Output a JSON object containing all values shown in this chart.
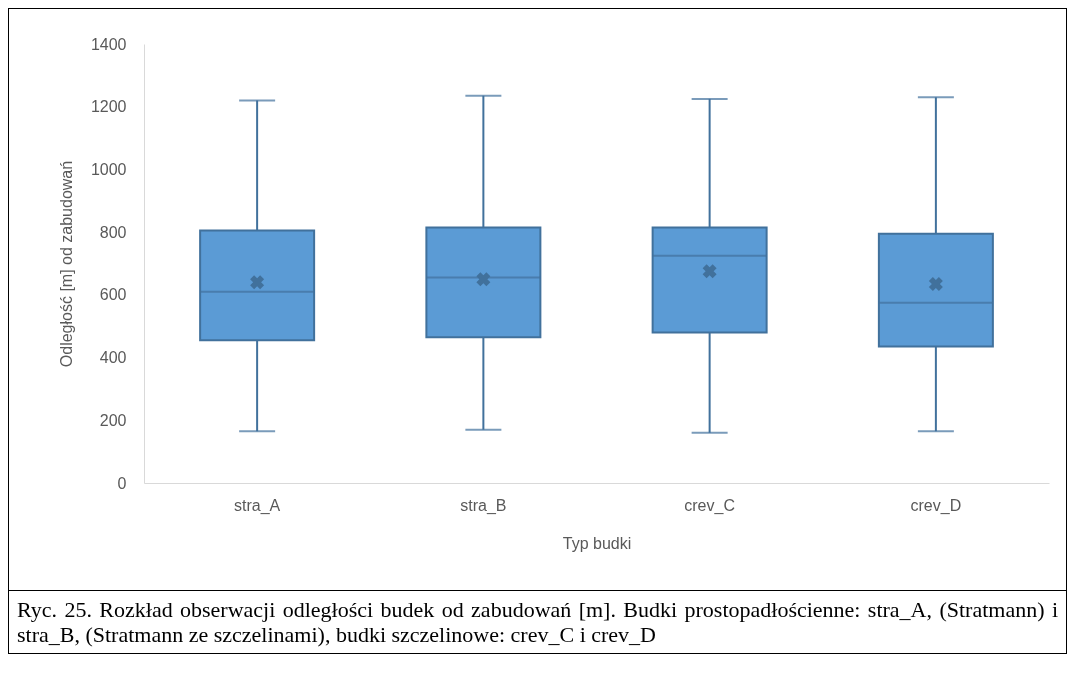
{
  "chart_data": {
    "type": "box",
    "categories": [
      "stra_A",
      "stra_B",
      "crev_C",
      "crev_D"
    ],
    "boxes": [
      {
        "low": 165,
        "q1": 455,
        "median": 610,
        "q3": 805,
        "high": 1220,
        "mean": 640
      },
      {
        "low": 170,
        "q1": 465,
        "median": 655,
        "q3": 815,
        "high": 1235,
        "mean": 650
      },
      {
        "low": 160,
        "q1": 480,
        "median": 725,
        "q3": 815,
        "high": 1225,
        "mean": 675
      },
      {
        "low": 165,
        "q1": 435,
        "median": 575,
        "q3": 795,
        "high": 1230,
        "mean": 635
      }
    ],
    "color": "#5b9bd5",
    "xlabel": "Typ budki",
    "ylabel": "Odległość [m] od zabudowań",
    "ylim": [
      0,
      1400
    ],
    "yticks": [
      0,
      200,
      400,
      600,
      800,
      1000,
      1200,
      1400
    ],
    "annotations": [
      "Ryc. 25. Rozkład obserwacji odległości budek od zabudowań [m]. Budki prostopadłościenne: stra_A, (Stratmann) i stra_B, (Stratmann ze szczelinami), budki szczelinowe: crev_C i crev_D"
    ]
  }
}
